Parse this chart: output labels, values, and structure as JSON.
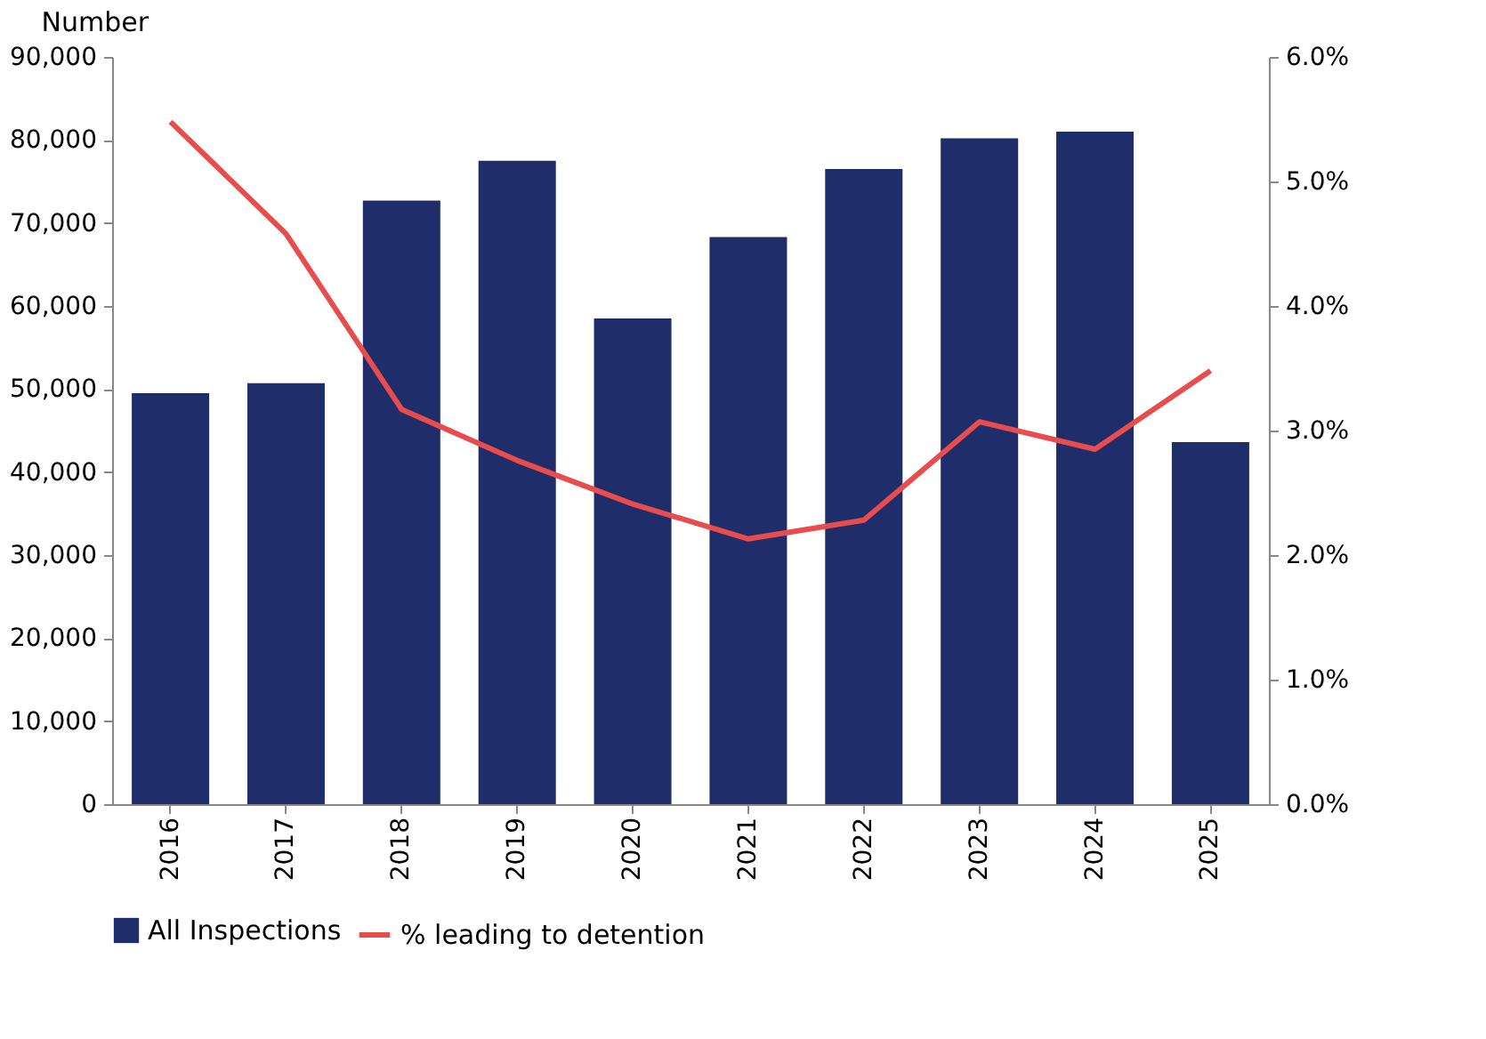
{
  "chart_data": {
    "type": "bar",
    "ylabel": "Number",
    "categories": [
      "2016",
      "2017",
      "2018",
      "2019",
      "2020",
      "2021",
      "2022",
      "2023",
      "2024",
      "2025"
    ],
    "series": [
      {
        "name": "All Inspections",
        "color": "#1f2d6b",
        "values": [
          49500,
          50700,
          72700,
          77500,
          58500,
          68300,
          76500,
          80200,
          81000,
          43600
        ]
      },
      {
        "name": "% leading to detention",
        "type": "line",
        "axis": "y2",
        "color": "#e84c4c",
        "values": [
          5.48,
          4.58,
          3.17,
          2.76,
          2.41,
          2.13,
          2.28,
          3.07,
          2.85,
          3.48
        ]
      }
    ],
    "ylim": [
      0,
      90000
    ],
    "yticks": [
      {
        "value": 0,
        "label": "0"
      },
      {
        "value": 10000,
        "label": "10,000"
      },
      {
        "value": 20000,
        "label": "20,000"
      },
      {
        "value": 30000,
        "label": "30,000"
      },
      {
        "value": 40000,
        "label": "40,000"
      },
      {
        "value": 50000,
        "label": "50,000"
      },
      {
        "value": 60000,
        "label": "60,000"
      },
      {
        "value": 70000,
        "label": "70,000"
      },
      {
        "value": 80000,
        "label": "80,000"
      },
      {
        "value": 90000,
        "label": "90,000"
      }
    ],
    "y2lim": [
      0,
      6
    ],
    "y2ticks": [
      {
        "value": 0,
        "label": "0.0%"
      },
      {
        "value": 1,
        "label": "1.0%"
      },
      {
        "value": 2,
        "label": "2.0%"
      },
      {
        "value": 3,
        "label": "3.0%"
      },
      {
        "value": 4,
        "label": "4.0%"
      },
      {
        "value": 5,
        "label": "5.0%"
      },
      {
        "value": 6,
        "label": "6.0%"
      }
    ],
    "grid": false,
    "legend": "bottom",
    "marker": "none",
    "line_style": "solid"
  }
}
